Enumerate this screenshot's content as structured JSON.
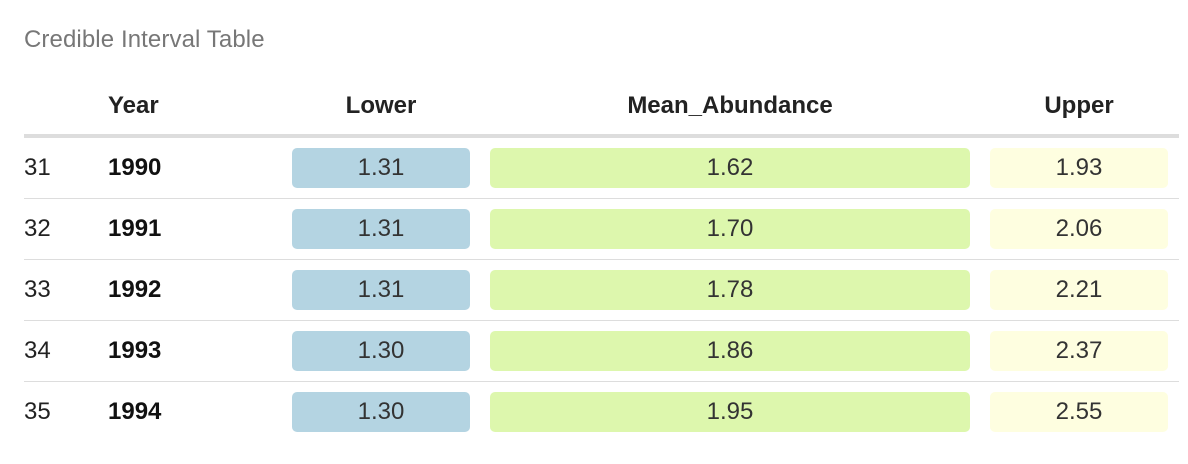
{
  "table": {
    "caption": "Credible Interval Table",
    "columns": {
      "index": "",
      "year": "Year",
      "lower": "Lower",
      "mean": "Mean_Abundance",
      "upper": "Upper"
    },
    "rows": [
      {
        "index": "31",
        "year": "1990",
        "lower": "1.31",
        "mean": "1.62",
        "upper": "1.93"
      },
      {
        "index": "32",
        "year": "1991",
        "lower": "1.31",
        "mean": "1.70",
        "upper": "2.06"
      },
      {
        "index": "33",
        "year": "1992",
        "lower": "1.31",
        "mean": "1.78",
        "upper": "2.21"
      },
      {
        "index": "34",
        "year": "1993",
        "lower": "1.30",
        "mean": "1.86",
        "upper": "2.37"
      },
      {
        "index": "35",
        "year": "1994",
        "lower": "1.30",
        "mean": "1.95",
        "upper": "2.55"
      }
    ],
    "colors": {
      "lower_bg": "#b4d4e2",
      "mean_bg": "#ddf7ad",
      "upper_bg": "#fefee0"
    }
  }
}
